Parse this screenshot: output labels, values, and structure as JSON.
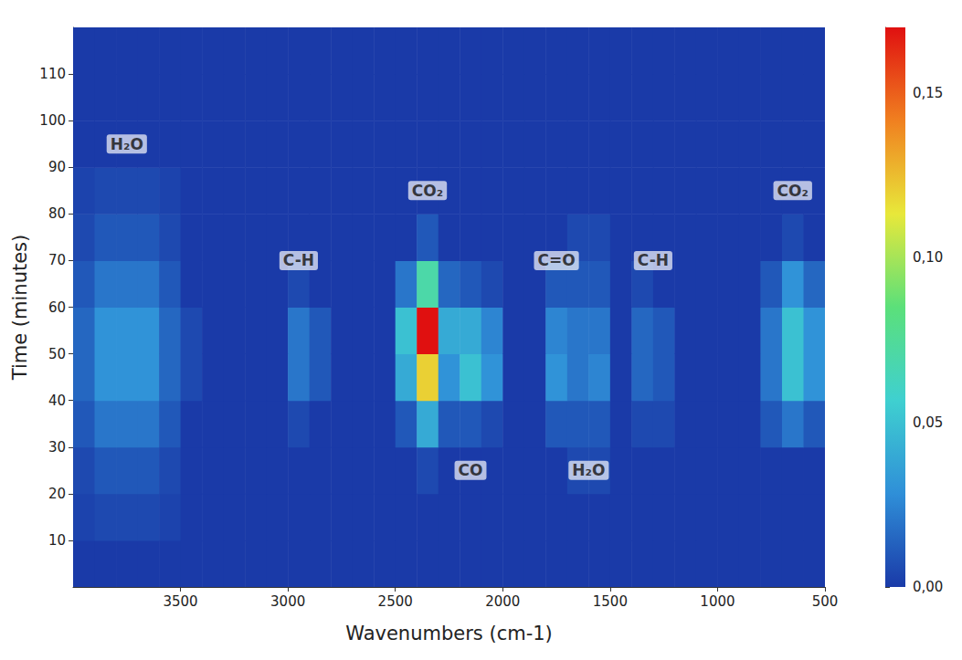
{
  "chart_data": {
    "type": "heatmap",
    "x_label": "Wavenumbers (cm-1)",
    "y_label": "Time (minutes)",
    "xlim": [
      4000,
      500
    ],
    "xticks": [
      3500,
      3000,
      2500,
      2000,
      1500,
      1000,
      500
    ],
    "ylim": [
      0,
      120
    ],
    "yticks": [
      10,
      20,
      30,
      40,
      50,
      60,
      70,
      80,
      90,
      100,
      110
    ],
    "grid": false,
    "cells": {
      "x": [
        3950,
        3850,
        3750,
        3650,
        3550,
        3450,
        3350,
        3250,
        3150,
        3050,
        2950,
        2850,
        2750,
        2650,
        2550,
        2450,
        2350,
        2250,
        2150,
        2050,
        1950,
        1850,
        1750,
        1650,
        1550,
        1450,
        1350,
        1250,
        1150,
        1050,
        950,
        850,
        750,
        650,
        550
      ],
      "y": [
        5,
        15,
        25,
        35,
        45,
        55,
        65,
        75,
        85,
        95,
        105,
        115
      ],
      "values": [
        [
          0,
          0,
          0,
          0,
          0,
          0,
          0,
          0,
          0,
          0,
          0,
          0,
          0,
          0,
          0,
          0,
          0,
          0,
          0,
          0,
          0,
          0,
          0,
          0,
          0,
          0,
          0,
          0,
          0,
          0,
          0,
          0,
          0,
          0,
          0
        ],
        [
          0.003,
          0.005,
          0.005,
          0.005,
          0.003,
          0,
          0,
          0,
          0,
          0,
          0,
          0,
          0,
          0,
          0,
          0,
          0,
          0,
          0,
          0,
          0,
          0,
          0,
          0,
          0,
          0,
          0,
          0,
          0,
          0,
          0,
          0,
          0,
          0,
          0
        ],
        [
          0.005,
          0.01,
          0.01,
          0.01,
          0.005,
          0,
          0,
          0,
          0,
          0,
          0,
          0,
          0,
          0,
          0,
          0,
          0.005,
          0,
          0,
          0,
          0,
          0,
          0,
          0.005,
          0.005,
          0,
          0,
          0,
          0,
          0,
          0,
          0,
          0,
          0,
          0
        ],
        [
          0.01,
          0.02,
          0.02,
          0.02,
          0.01,
          0,
          0,
          0,
          0,
          0,
          0.005,
          0,
          0,
          0,
          0,
          0.01,
          0.04,
          0.01,
          0.01,
          0.005,
          0,
          0,
          0.01,
          0.01,
          0.01,
          0,
          0.005,
          0.005,
          0,
          0,
          0,
          0,
          0.01,
          0.02,
          0.01
        ],
        [
          0.015,
          0.03,
          0.03,
          0.03,
          0.015,
          0.005,
          0,
          0,
          0,
          0,
          0.02,
          0.01,
          0,
          0,
          0,
          0.04,
          0.12,
          0.03,
          0.05,
          0.03,
          0,
          0,
          0.03,
          0.02,
          0.025,
          0,
          0.015,
          0.01,
          0,
          0,
          0,
          0,
          0.02,
          0.05,
          0.03
        ],
        [
          0.015,
          0.03,
          0.03,
          0.03,
          0.015,
          0.005,
          0,
          0,
          0,
          0,
          0.02,
          0.01,
          0,
          0,
          0,
          0.05,
          0.17,
          0.04,
          0.04,
          0.025,
          0,
          0,
          0.025,
          0.02,
          0.02,
          0,
          0.015,
          0.01,
          0,
          0,
          0,
          0,
          0.02,
          0.05,
          0.03
        ],
        [
          0.01,
          0.02,
          0.02,
          0.02,
          0.01,
          0,
          0,
          0,
          0,
          0,
          0.005,
          0,
          0,
          0,
          0,
          0.02,
          0.07,
          0.015,
          0.01,
          0.005,
          0,
          0,
          0.01,
          0.01,
          0.01,
          0,
          0.005,
          0,
          0,
          0,
          0,
          0,
          0.01,
          0.03,
          0.015
        ],
        [
          0.005,
          0.01,
          0.01,
          0.01,
          0.005,
          0,
          0,
          0,
          0,
          0,
          0,
          0,
          0,
          0,
          0,
          0,
          0.01,
          0,
          0,
          0,
          0,
          0,
          0,
          0.005,
          0.005,
          0,
          0,
          0,
          0,
          0,
          0,
          0,
          0,
          0.005,
          0
        ],
        [
          0.003,
          0.005,
          0.005,
          0.005,
          0.003,
          0,
          0,
          0,
          0,
          0,
          0,
          0,
          0,
          0,
          0,
          0,
          0,
          0,
          0,
          0,
          0,
          0,
          0,
          0,
          0,
          0,
          0,
          0,
          0,
          0,
          0,
          0,
          0,
          0,
          0
        ],
        [
          0,
          0,
          0,
          0,
          0,
          0,
          0,
          0,
          0,
          0,
          0,
          0,
          0,
          0,
          0,
          0,
          0,
          0,
          0,
          0,
          0,
          0,
          0,
          0,
          0,
          0,
          0,
          0,
          0,
          0,
          0,
          0,
          0,
          0,
          0
        ],
        [
          0,
          0,
          0,
          0,
          0,
          0,
          0,
          0,
          0,
          0,
          0,
          0,
          0,
          0,
          0,
          0,
          0,
          0,
          0,
          0,
          0,
          0,
          0,
          0,
          0,
          0,
          0,
          0,
          0,
          0,
          0,
          0,
          0,
          0,
          0
        ],
        [
          0,
          0,
          0,
          0,
          0,
          0,
          0,
          0,
          0,
          0,
          0,
          0,
          0,
          0,
          0,
          0,
          0,
          0,
          0,
          0,
          0,
          0,
          0,
          0,
          0,
          0,
          0,
          0,
          0,
          0,
          0,
          0,
          0,
          0,
          0
        ]
      ]
    },
    "color_range": [
      0,
      0.17
    ],
    "color_ticks": [
      {
        "value": 0,
        "label": "0,00"
      },
      {
        "value": 0.05,
        "label": "0,05"
      },
      {
        "value": 0.1,
        "label": "0,10"
      },
      {
        "value": 0.15,
        "label": "0,15"
      }
    ],
    "annotations": [
      {
        "text": "H₂O",
        "x": 3750,
        "y": 95
      },
      {
        "text": "C-H",
        "x": 2950,
        "y": 70
      },
      {
        "text": "CO₂",
        "x": 2350,
        "y": 85
      },
      {
        "text": "CO",
        "x": 2150,
        "y": 25
      },
      {
        "text": "C=O",
        "x": 1750,
        "y": 70
      },
      {
        "text": "H₂O",
        "x": 1600,
        "y": 25
      },
      {
        "text": "C-H",
        "x": 1300,
        "y": 70
      },
      {
        "text": "CO₂",
        "x": 650,
        "y": 85
      }
    ]
  }
}
